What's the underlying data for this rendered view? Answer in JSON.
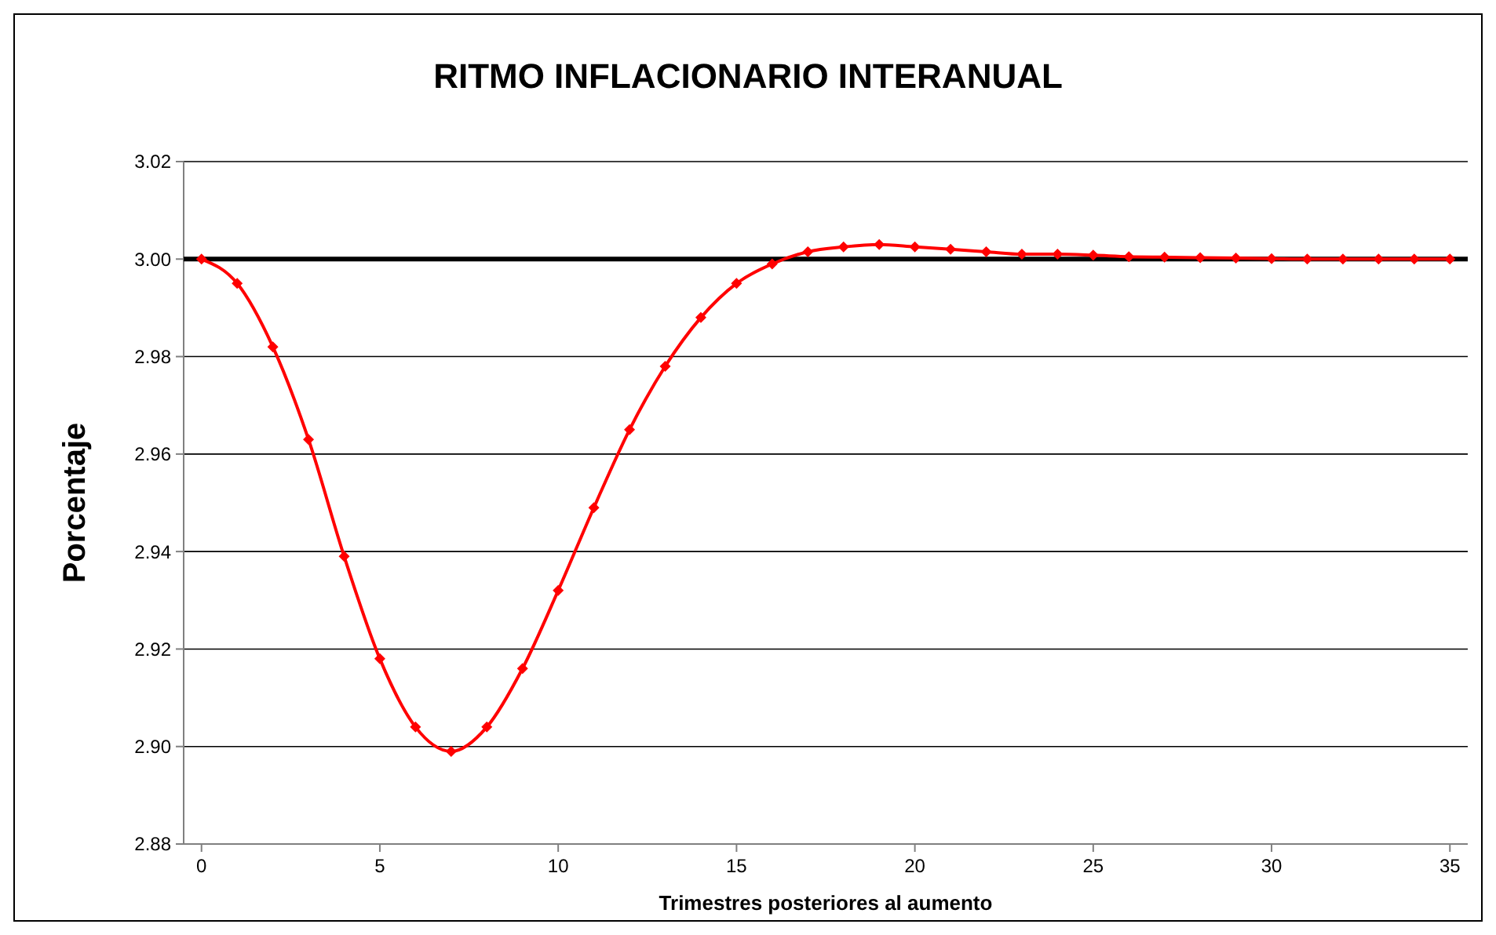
{
  "chart_data": {
    "type": "line",
    "title": "RITMO INFLACIONARIO INTERANUAL",
    "xlabel": "Trimestres posteriores al  aumento",
    "ylabel": "Porcentaje",
    "x": [
      0,
      1,
      2,
      3,
      4,
      5,
      6,
      7,
      8,
      9,
      10,
      11,
      12,
      13,
      14,
      15,
      16,
      17,
      18,
      19,
      20,
      21,
      22,
      23,
      24,
      25,
      26,
      27,
      28,
      29,
      30,
      31,
      32,
      33,
      34,
      35
    ],
    "series": [
      {
        "color": "#ff0000",
        "values": [
          3.0,
          2.995,
          2.982,
          2.963,
          2.939,
          2.918,
          2.904,
          2.899,
          2.904,
          2.916,
          2.932,
          2.949,
          2.965,
          2.978,
          2.988,
          2.995,
          2.999,
          3.0015,
          3.0025,
          3.003,
          3.0025,
          3.002,
          3.0015,
          3.001,
          3.001,
          3.0008,
          3.0005,
          3.0004,
          3.0003,
          3.0002,
          3.0001,
          3.0,
          3.0,
          3.0,
          3.0,
          3.0
        ]
      }
    ],
    "xlim": [
      -0.5,
      35.5
    ],
    "ylim": [
      2.88,
      3.02
    ],
    "xticks": [
      0,
      5,
      10,
      15,
      20,
      25,
      30,
      35
    ],
    "yticks": [
      {
        "value": 2.88,
        "label": "2.88"
      },
      {
        "value": 2.9,
        "label": "2.90"
      },
      {
        "value": 2.92,
        "label": "2.92"
      },
      {
        "value": 2.94,
        "label": "2.94"
      },
      {
        "value": 2.96,
        "label": "2.96"
      },
      {
        "value": 2.98,
        "label": "2.98"
      },
      {
        "value": 3.0,
        "label": "3.00"
      },
      {
        "value": 3.02,
        "label": "3.02"
      }
    ],
    "ref_lines": [
      {
        "axis": "y",
        "value": 3.0,
        "color": "#000000"
      }
    ],
    "grid": "y",
    "marker": "diamond",
    "line_style": "solid"
  }
}
